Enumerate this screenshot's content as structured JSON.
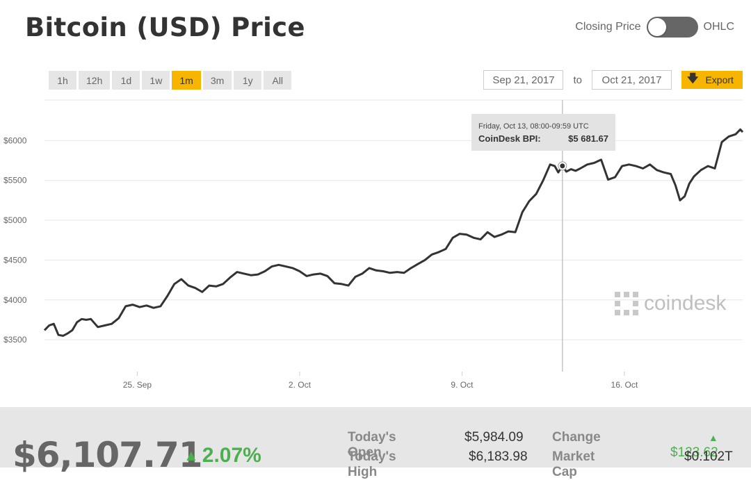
{
  "header": {
    "title": "Bitcoin (USD) Price",
    "toggle_left": "Closing Price",
    "toggle_right": "OHLC"
  },
  "ranges": [
    "1h",
    "12h",
    "1d",
    "1w",
    "1m",
    "3m",
    "1y",
    "All"
  ],
  "active_range": "1m",
  "date_range": {
    "from": "Sep 21, 2017",
    "to_label": "to",
    "to": "Oct 21, 2017",
    "export_label": "Export"
  },
  "tooltip": {
    "date": "Friday, Oct 13, 08:00-09:59 UTC",
    "label": "CoinDesk BPI:",
    "value": "$5 681.67"
  },
  "watermark": "coindesk",
  "summary": {
    "price": "$6,107.71",
    "change_pct": "2.07%",
    "todays_open_label": "Today's Open",
    "todays_open": "$5,984.09",
    "todays_high_label": "Today's High",
    "todays_high": "$6,183.98",
    "change_label": "Change",
    "change": "$123.62",
    "market_cap_label": "Market Cap",
    "market_cap": "$0.102T"
  },
  "colors": {
    "accent": "#f7b500",
    "line": "#333333",
    "positive": "#4cb050"
  },
  "chart_data": {
    "type": "line",
    "ylim": [
      3100,
      6500
    ],
    "y_ticks": [
      3500,
      4000,
      4500,
      5000,
      5500,
      6000
    ],
    "y_tick_labels": [
      "$3500",
      "$4000",
      "$4500",
      "$5000",
      "$5500",
      "$6000"
    ],
    "x_ticks": [
      {
        "day": 25,
        "label": "25. Sep"
      },
      {
        "day": 32,
        "label": "2. Oct"
      },
      {
        "day": 39,
        "label": "9. Oct"
      },
      {
        "day": 46,
        "label": "16. Oct"
      }
    ],
    "x_range": [
      21,
      51.1
    ],
    "crosshair_day": 43.33,
    "highlight_point": {
      "x": 43.33,
      "y": 5681.67
    },
    "series": [
      {
        "x": [
          21.0,
          21.2,
          21.4,
          21.6,
          21.8,
          22.0,
          22.2,
          22.4,
          22.6,
          22.8,
          23.0,
          23.3,
          23.6,
          23.9,
          24.2,
          24.5,
          24.8,
          25.1,
          25.4,
          25.7,
          26.0,
          26.3,
          26.6,
          26.9,
          27.2,
          27.5,
          27.8,
          28.1,
          28.4,
          28.7,
          29.0,
          29.3,
          29.6,
          29.9,
          30.2,
          30.5,
          30.8,
          31.1,
          31.4,
          31.7,
          32.0,
          32.3,
          32.6,
          32.9,
          33.2,
          33.5,
          33.8,
          34.1,
          34.4,
          34.7,
          35.0,
          35.3,
          35.6,
          35.9,
          36.2,
          36.5,
          36.8,
          37.1,
          37.4,
          37.7,
          38.0,
          38.3,
          38.6,
          38.9,
          39.2,
          39.5,
          39.8,
          40.1,
          40.4,
          40.7,
          41.0,
          41.3,
          41.6,
          41.9,
          42.2,
          42.5,
          42.8,
          43.0,
          43.15,
          43.33,
          43.5,
          43.7,
          43.9,
          44.1,
          44.4,
          44.7,
          45.0,
          45.3,
          45.6,
          45.9,
          46.2,
          46.5,
          46.8,
          47.1,
          47.4,
          47.7,
          48.0,
          48.2,
          48.4,
          48.6,
          48.8,
          49.0,
          49.3,
          49.6,
          49.9,
          50.2,
          50.5,
          50.8,
          51.0,
          51.1
        ],
        "y": [
          3620,
          3680,
          3700,
          3560,
          3550,
          3580,
          3620,
          3720,
          3760,
          3750,
          3760,
          3660,
          3680,
          3700,
          3770,
          3920,
          3940,
          3910,
          3930,
          3900,
          3920,
          4050,
          4200,
          4260,
          4180,
          4150,
          4100,
          4180,
          4170,
          4200,
          4280,
          4350,
          4330,
          4310,
          4320,
          4360,
          4420,
          4440,
          4420,
          4400,
          4360,
          4300,
          4320,
          4330,
          4300,
          4210,
          4200,
          4180,
          4290,
          4330,
          4400,
          4370,
          4360,
          4340,
          4350,
          4340,
          4400,
          4450,
          4500,
          4570,
          4600,
          4640,
          4780,
          4830,
          4820,
          4780,
          4760,
          4850,
          4790,
          4820,
          4860,
          4850,
          5100,
          5240,
          5330,
          5500,
          5700,
          5680,
          5600,
          5681.67,
          5610,
          5640,
          5620,
          5650,
          5700,
          5720,
          5760,
          5510,
          5540,
          5680,
          5700,
          5680,
          5650,
          5700,
          5630,
          5600,
          5580,
          5440,
          5250,
          5300,
          5460,
          5550,
          5630,
          5680,
          5650,
          5980,
          6050,
          6080,
          6140,
          6107
        ]
      }
    ]
  }
}
